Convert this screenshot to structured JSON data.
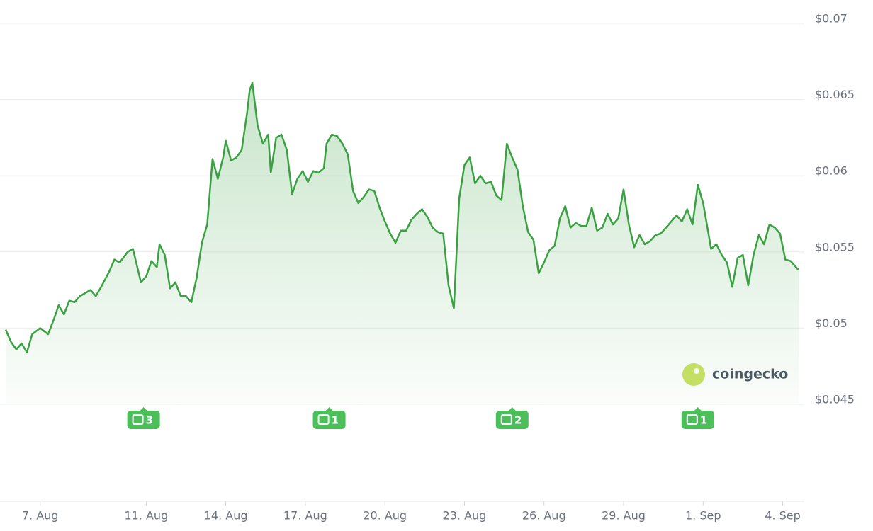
{
  "chart_data": {
    "type": "line",
    "x": [
      5.7,
      5.9,
      6.1,
      6.3,
      6.5,
      6.7,
      7.0,
      7.3,
      7.5,
      7.7,
      7.9,
      8.1,
      8.3,
      8.5,
      8.7,
      8.9,
      9.1,
      9.3,
      9.6,
      9.8,
      10.0,
      10.3,
      10.5,
      10.8,
      11.0,
      11.2,
      11.4,
      11.5,
      11.7,
      11.9,
      12.1,
      12.3,
      12.5,
      12.7,
      12.9,
      13.1,
      13.3,
      13.5,
      13.7,
      13.9,
      14.0,
      14.2,
      14.4,
      14.6,
      14.8,
      14.9,
      15.0,
      15.2,
      15.4,
      15.6,
      15.7,
      15.9,
      16.1,
      16.3,
      16.5,
      16.7,
      16.9,
      17.1,
      17.3,
      17.5,
      17.7,
      17.8,
      18.0,
      18.2,
      18.4,
      18.6,
      18.8,
      19.0,
      19.2,
      19.4,
      19.6,
      19.8,
      20.0,
      20.2,
      20.4,
      20.6,
      20.8,
      21.0,
      21.2,
      21.4,
      21.6,
      21.8,
      22.0,
      22.2,
      22.4,
      22.6,
      22.8,
      23.0,
      23.2,
      23.4,
      23.6,
      23.8,
      24.0,
      24.2,
      24.4,
      24.6,
      24.8,
      25.0,
      25.2,
      25.4,
      25.6,
      25.8,
      26.0,
      26.2,
      26.4,
      26.6,
      26.8,
      27.0,
      27.2,
      27.4,
      27.6,
      27.8,
      28.0,
      28.2,
      28.4,
      28.6,
      28.8,
      29.0,
      29.2,
      29.4,
      29.6,
      29.8,
      30.0,
      30.2,
      30.4,
      30.6,
      30.8,
      31.0,
      31.2,
      31.4,
      31.6,
      31.8,
      32.0,
      32.2,
      32.3,
      32.5,
      32.7,
      32.9,
      33.1,
      33.3,
      33.5,
      33.7,
      33.9,
      34.1,
      34.3,
      34.5,
      34.7,
      34.9,
      35.1,
      35.3,
      35.6
    ],
    "series": [
      {
        "color": "#3aa142",
        "values": [
          0.0499,
          0.0491,
          0.0486,
          0.049,
          0.0484,
          0.0496,
          0.05,
          0.0496,
          0.0505,
          0.0515,
          0.0509,
          0.0518,
          0.0517,
          0.0521,
          0.0523,
          0.0525,
          0.0521,
          0.0527,
          0.0537,
          0.0545,
          0.0543,
          0.055,
          0.0552,
          0.053,
          0.0534,
          0.0544,
          0.054,
          0.0555,
          0.0548,
          0.0526,
          0.053,
          0.0521,
          0.0521,
          0.0517,
          0.0533,
          0.0556,
          0.0568,
          0.0611,
          0.0598,
          0.0612,
          0.0623,
          0.061,
          0.0612,
          0.0617,
          0.0641,
          0.0656,
          0.0661,
          0.0633,
          0.0621,
          0.0627,
          0.0602,
          0.0625,
          0.0627,
          0.0617,
          0.0588,
          0.0598,
          0.0603,
          0.0596,
          0.0603,
          0.0602,
          0.0605,
          0.0621,
          0.0627,
          0.0626,
          0.0621,
          0.0614,
          0.059,
          0.0582,
          0.0586,
          0.0591,
          0.059,
          0.0579,
          0.057,
          0.0562,
          0.0556,
          0.0564,
          0.0564,
          0.0571,
          0.0575,
          0.0578,
          0.0573,
          0.0566,
          0.0563,
          0.0562,
          0.0528,
          0.0513,
          0.0585,
          0.0607,
          0.0612,
          0.0595,
          0.06,
          0.0595,
          0.0596,
          0.0587,
          0.0584,
          0.0621,
          0.0612,
          0.0604,
          0.058,
          0.0563,
          0.0558,
          0.0536,
          0.0543,
          0.0551,
          0.0554,
          0.0572,
          0.058,
          0.0566,
          0.0569,
          0.0567,
          0.0567,
          0.0579,
          0.0564,
          0.0566,
          0.0575,
          0.0568,
          0.0572,
          0.0591,
          0.0568,
          0.0553,
          0.0561,
          0.0555,
          0.0557,
          0.0561,
          0.0562,
          0.0566,
          0.057,
          0.0574,
          0.057,
          0.0578,
          0.0568,
          0.0594,
          0.0582,
          0.0562,
          0.0552,
          0.0555,
          0.0548,
          0.0543,
          0.0527,
          0.0546,
          0.0548,
          0.0528,
          0.0548,
          0.0561,
          0.0555,
          0.0568,
          0.0566,
          0.0562,
          0.0545,
          0.0544,
          0.0538
        ]
      }
    ],
    "xlim": [
      5.7,
      35.6
    ],
    "xticks": [
      {
        "value": 7,
        "label": "7. Aug"
      },
      {
        "value": 11,
        "label": "11. Aug"
      },
      {
        "value": 14,
        "label": "14. Aug"
      },
      {
        "value": 17,
        "label": "17. Aug"
      },
      {
        "value": 20,
        "label": "20. Aug"
      },
      {
        "value": 23,
        "label": "23. Aug"
      },
      {
        "value": 26,
        "label": "26. Aug"
      },
      {
        "value": 29,
        "label": "29. Aug"
      },
      {
        "value": 32,
        "label": "1. Sep"
      },
      {
        "value": 35,
        "label": "4. Sep"
      }
    ],
    "ylim": [
      0.045,
      0.07
    ],
    "yticks": [
      {
        "value": 0.045,
        "label": "$0.045"
      },
      {
        "value": 0.05,
        "label": "$0.05"
      },
      {
        "value": 0.055,
        "label": "$0.055"
      },
      {
        "value": 0.06,
        "label": "$0.06"
      },
      {
        "value": 0.065,
        "label": "$0.065"
      },
      {
        "value": 0.07,
        "label": "$0.07"
      }
    ],
    "grid": true,
    "news": [
      {
        "x": 10.9,
        "count": "3"
      },
      {
        "x": 17.9,
        "count": "1"
      },
      {
        "x": 24.8,
        "count": "2"
      },
      {
        "x": 31.8,
        "count": "1"
      }
    ],
    "watermark": "coingecko"
  }
}
